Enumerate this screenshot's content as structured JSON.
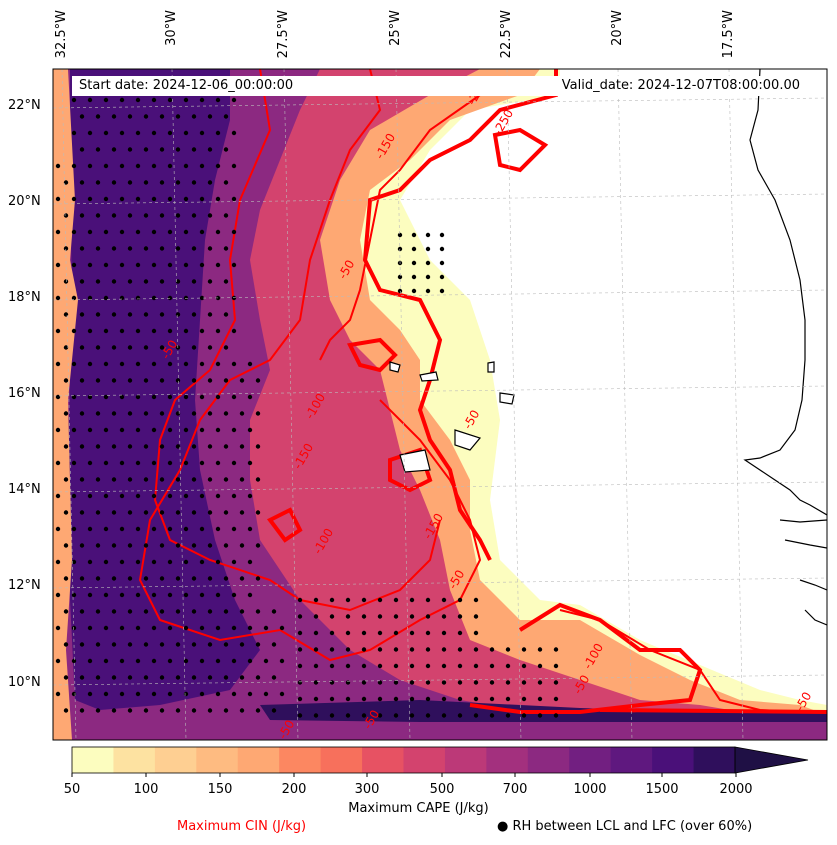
{
  "header": {
    "start_date": "Start date: 2024-12-06_00:00:00",
    "valid_date": "Valid_date: 2024-12-07T08:00:00.00"
  },
  "map": {
    "lon_labels": [
      "32.5°W",
      "30°W",
      "27.5°W",
      "25°W",
      "22.5°W",
      "20°W",
      "17.5°W"
    ],
    "lat_labels": [
      "22°N",
      "20°N",
      "18°N",
      "16°N",
      "14°N",
      "12°N",
      "10°N"
    ],
    "contour_labels": [
      "-250",
      "-150",
      "-100",
      "-50",
      "-50",
      "-150",
      "-100",
      "-50",
      "-50",
      "-100",
      "-150",
      "-50",
      "-250",
      "-50",
      "-50",
      "-50"
    ]
  },
  "colorbar": {
    "ticks": [
      "50",
      "100",
      "150",
      "200",
      "300",
      "500",
      "700",
      "1000",
      "1500",
      "2000"
    ],
    "colors": [
      "#fcfdbf",
      "#fde2a1",
      "#fecf92",
      "#febb81",
      "#fea873",
      "#fc8761",
      "#f7705c",
      "#e75263",
      "#d3436e",
      "#bc3978",
      "#a3307e",
      "#8c2981",
      "#721f81",
      "#5f187f",
      "#4a1079",
      "#2f0f5c",
      "#1f1045"
    ],
    "title": "Maximum CAPE (J/kg)"
  },
  "legend": {
    "cin": "Maximum CIN (J/kg)",
    "rh": "● RH between LCL and LFC (over 60%)"
  }
}
